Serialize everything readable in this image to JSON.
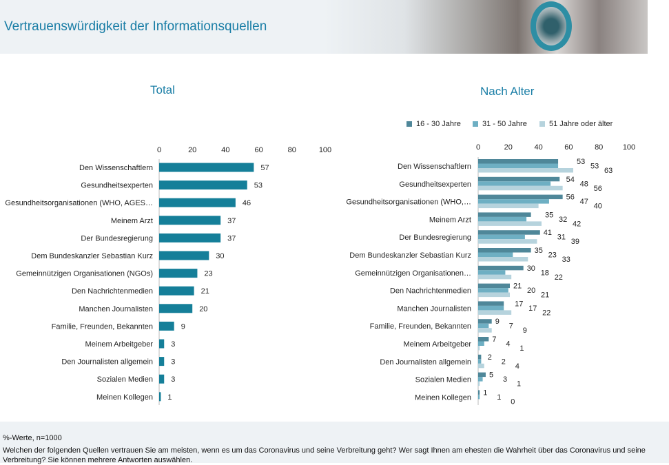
{
  "header": {
    "title": "Vertrauenswürdigkeit der Informationsquellen"
  },
  "chart_data": [
    {
      "type": "bar",
      "orientation": "horizontal",
      "title": "Total",
      "xlim": [
        0,
        100
      ],
      "xticks": [
        0,
        20,
        40,
        60,
        80,
        100
      ],
      "color": "#157f99",
      "categories": [
        "Den Wissenschaftlern",
        "Gesundheitsexperten",
        "Gesundheitsorganisationen (WHO, AGES…",
        "Meinem Arzt",
        "Der Bundesregierung",
        "Dem Bundeskanzler Sebastian Kurz",
        "Gemeinnützigen Organisationen (NGOs)",
        "Den Nachrichtenmedien",
        "Manchen Journalisten",
        "Familie, Freunden, Bekannten",
        "Meinem Arbeitgeber",
        "Den Journalisten allgemein",
        "Sozialen Medien",
        "Meinen Kollegen"
      ],
      "values": [
        57,
        53,
        46,
        37,
        37,
        30,
        23,
        21,
        20,
        9,
        3,
        3,
        3,
        1
      ]
    },
    {
      "type": "bar",
      "orientation": "horizontal",
      "title": "Nach Alter",
      "xlim": [
        0,
        100
      ],
      "xticks": [
        0,
        20,
        40,
        60,
        80,
        100
      ],
      "legend": "top",
      "categories": [
        "Den Wissenschaftlern",
        "Gesundheitsexperten",
        "Gesundheitsorganisationen (WHO,…",
        "Meinem Arzt",
        "Der Bundesregierung",
        "Dem Bundeskanzler Sebastian Kurz",
        "Gemeinnützigen Organisationen…",
        "Den Nachrichtenmedien",
        "Manchen Journalisten",
        "Familie, Freunden, Bekannten",
        "Meinem Arbeitgeber",
        "Den Journalisten allgemein",
        "Sozialen Medien",
        "Meinen Kollegen"
      ],
      "series": [
        {
          "name": "16 - 30 Jahre",
          "color": "#4f8799",
          "values": [
            53,
            54,
            56,
            35,
            41,
            35,
            30,
            21,
            17,
            9,
            7,
            2,
            5,
            1
          ]
        },
        {
          "name": "31 - 50 Jahre",
          "color": "#6eafc3",
          "values": [
            53,
            48,
            47,
            32,
            31,
            23,
            18,
            20,
            17,
            7,
            4,
            2,
            3,
            1
          ]
        },
        {
          "name": "51 Jahre oder älter",
          "color": "#b6d3dd",
          "values": [
            63,
            56,
            40,
            42,
            39,
            33,
            22,
            21,
            22,
            9,
            1,
            4,
            1,
            0
          ]
        }
      ]
    }
  ],
  "footer": {
    "note": "%-Werte, n=1000",
    "question": "Welchen der folgenden Quellen vertrauen Sie am meisten, wenn es um das Coronavirus und seine Verbreitung geht? Wer sagt Ihnen am ehesten die Wahrheit über das Coronavirus und seine Verbreitung? Sie können mehrere Antworten auswählen."
  }
}
